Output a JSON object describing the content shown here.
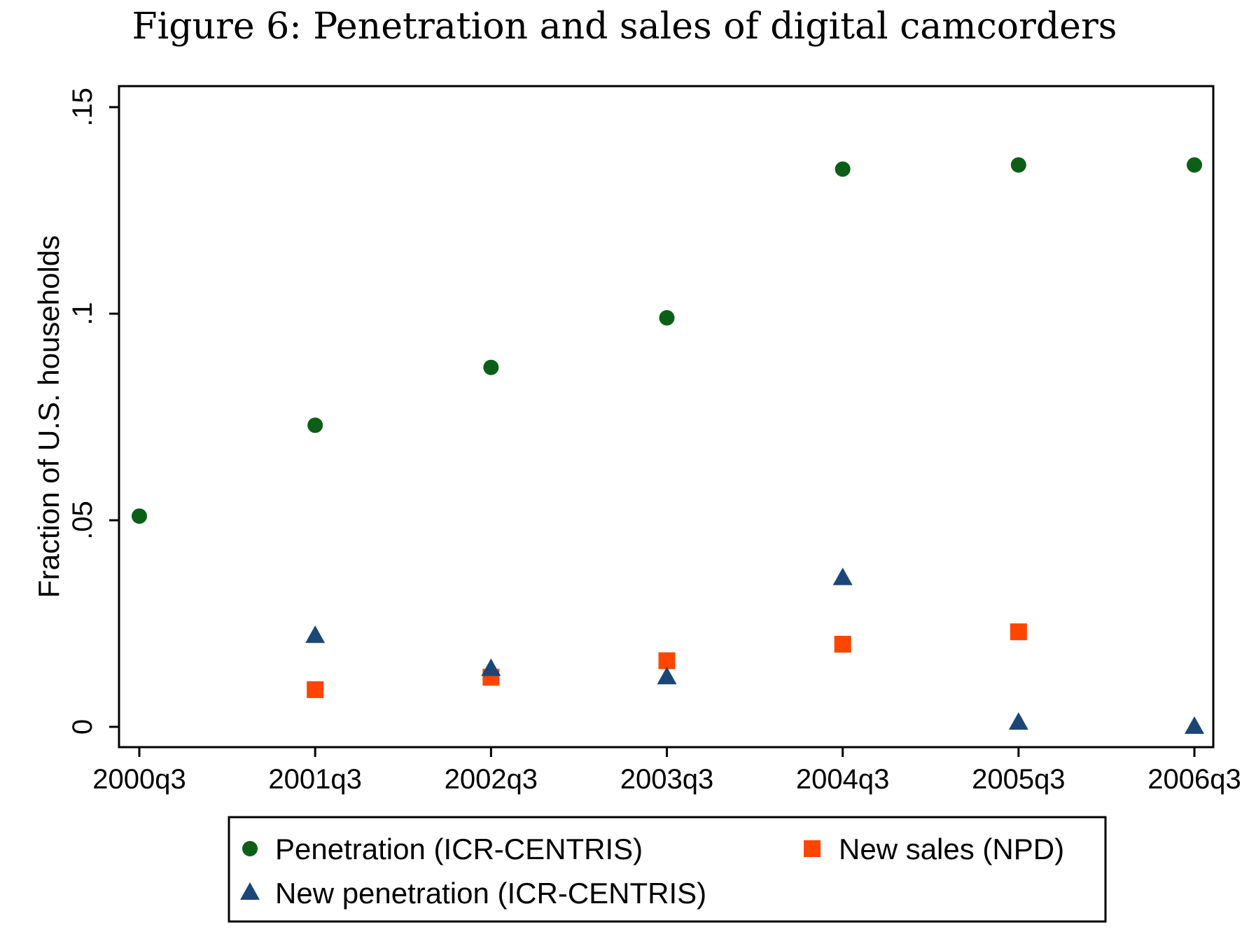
{
  "chart_data": {
    "type": "scatter",
    "title": "Figure 6: Penetration and sales of digital camcorders",
    "xlabel": "",
    "ylabel": "Fraction of U.S. households",
    "categories": [
      "2000q3",
      "2001q3",
      "2002q3",
      "2003q3",
      "2004q3",
      "2005q3",
      "2006q3"
    ],
    "y_ticks": [
      {
        "value": 0,
        "label": "0"
      },
      {
        "value": 0.05,
        "label": ".05"
      },
      {
        "value": 0.1,
        "label": ".1"
      },
      {
        "value": 0.15,
        "label": ".15"
      }
    ],
    "ylim": [
      -0.005,
      0.155
    ],
    "grid": false,
    "legend_position": "bottom",
    "series": [
      {
        "name": "Penetration (ICR-CENTRIS)",
        "marker": "circle",
        "color": "#0b5f16",
        "values": [
          0.051,
          0.073,
          0.087,
          0.099,
          0.135,
          0.136,
          0.136
        ]
      },
      {
        "name": "New sales (NPD)",
        "marker": "square",
        "color": "#ff4500",
        "values": [
          null,
          0.009,
          0.012,
          0.016,
          0.02,
          0.023,
          null
        ]
      },
      {
        "name": "New penetration (ICR-CENTRIS)",
        "marker": "triangle",
        "color": "#1b4677",
        "values": [
          null,
          0.022,
          0.014,
          0.012,
          0.036,
          0.001,
          0.0
        ]
      }
    ]
  }
}
